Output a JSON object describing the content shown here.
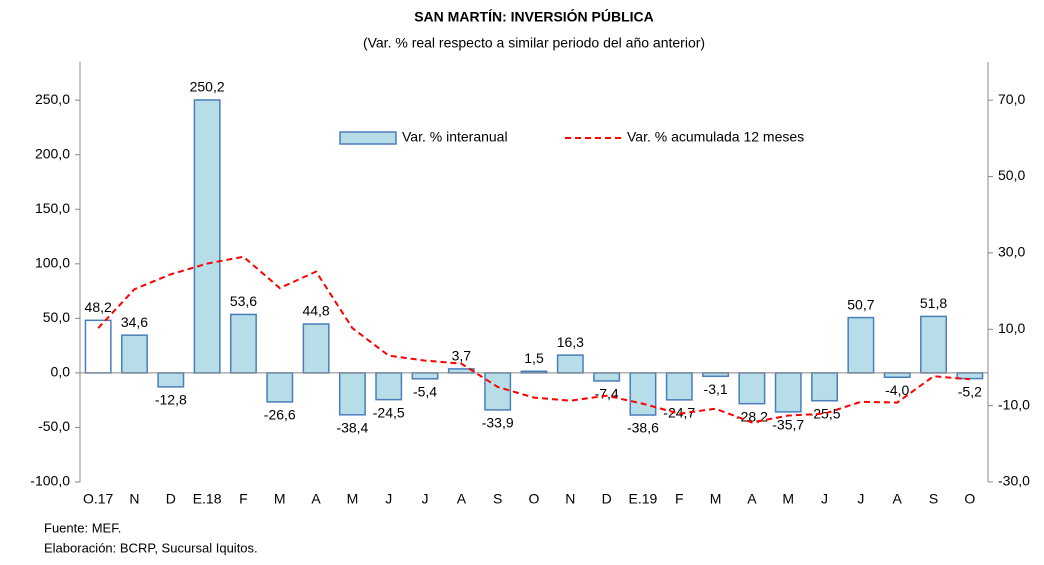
{
  "chart_data": {
    "type": "bar_line",
    "title": "SAN MARTÍN: INVERSIÓN PÚBLICA",
    "subtitle": "(Var. % real respecto a similar periodo del año anterior)",
    "categories": [
      "O.17",
      "N",
      "D",
      "E.18",
      "F",
      "M",
      "A",
      "M",
      "J",
      "J",
      "A",
      "S",
      "O",
      "N",
      "D",
      "E.19",
      "F",
      "M",
      "A",
      "M",
      "J",
      "J",
      "A",
      "S",
      "O"
    ],
    "series": [
      {
        "name": "Var. % interanual",
        "type": "bar",
        "color": "#b7dde8",
        "edge_color": "#4a7ebb",
        "colors": [
          "#ffffff",
          "#b7dde8",
          "#b7dde8",
          "#b7dde8",
          "#b7dde8",
          "#b7dde8",
          "#b7dde8",
          "#b7dde8",
          "#b7dde8",
          "#b7dde8",
          "#b7dde8",
          "#b7dde8",
          "#b7dde8",
          "#b7dde8",
          "#b7dde8",
          "#b7dde8",
          "#b7dde8",
          "#b7dde8",
          "#b7dde8",
          "#b7dde8",
          "#b7dde8",
          "#b7dde8",
          "#b7dde8",
          "#b7dde8",
          "#b7dde8"
        ],
        "values": [
          48.2,
          34.6,
          -12.8,
          250.2,
          53.6,
          -26.6,
          44.8,
          -38.4,
          -24.5,
          -5.4,
          3.7,
          -33.9,
          1.5,
          16.3,
          -7.4,
          -38.6,
          -24.7,
          -3.1,
          -28.2,
          -35.7,
          -25.5,
          50.7,
          -4.0,
          51.8,
          -5.2
        ],
        "value_labels": [
          "48,2",
          "34,6",
          "-12,8",
          "250,2",
          "53,6",
          "-26,6",
          "44,8",
          "-38,4",
          "-24,5",
          "-5,4",
          "3,7",
          "-33,9",
          "1,5",
          "16,3",
          "-7,4",
          "-38,6",
          "-24,7",
          "-3,1",
          "-28,2",
          "-35,7",
          "-25,5",
          "50,7",
          "-4,0",
          "51,8",
          "-5,2"
        ]
      },
      {
        "name": "Var. % acumulada 12 meses",
        "type": "line",
        "axis": "y2",
        "color": "#ff0000",
        "line_style": "dashed",
        "values": [
          10.3,
          20.5,
          24.4,
          27.2,
          29.0,
          20.8,
          25.1,
          10.3,
          3.1,
          1.8,
          1.0,
          -5.1,
          -7.9,
          -8.7,
          -7.4,
          -9.5,
          -12.1,
          -10.8,
          -14.4,
          -12.6,
          -12.1,
          -9.0,
          -9.2,
          -2.3,
          -3.1
        ]
      }
    ],
    "ylim": [
      -100,
      285
    ],
    "yticks": [
      {
        "value": -100,
        "label": "-100,0"
      },
      {
        "value": -50,
        "label": "-50,0"
      },
      {
        "value": 0,
        "label": "0,0"
      },
      {
        "value": 50,
        "label": "50,0"
      },
      {
        "value": 100,
        "label": "100,0"
      },
      {
        "value": 150,
        "label": "150,0"
      },
      {
        "value": 200,
        "label": "200,0"
      },
      {
        "value": 250,
        "label": "250,0"
      }
    ],
    "y2lim": [
      -30,
      80
    ],
    "y2ticks": [
      {
        "value": -30,
        "label": "-30,0"
      },
      {
        "value": -10,
        "label": "-10,0"
      },
      {
        "value": 10,
        "label": "10,0"
      },
      {
        "value": 30,
        "label": "30,0"
      },
      {
        "value": 50,
        "label": "50,0"
      },
      {
        "value": 70,
        "label": "70,0"
      }
    ],
    "grid": false,
    "legend": "top",
    "notes": [
      "Fuente: MEF.",
      "Elaboración: BCRP, Sucursal Iquitos."
    ]
  }
}
